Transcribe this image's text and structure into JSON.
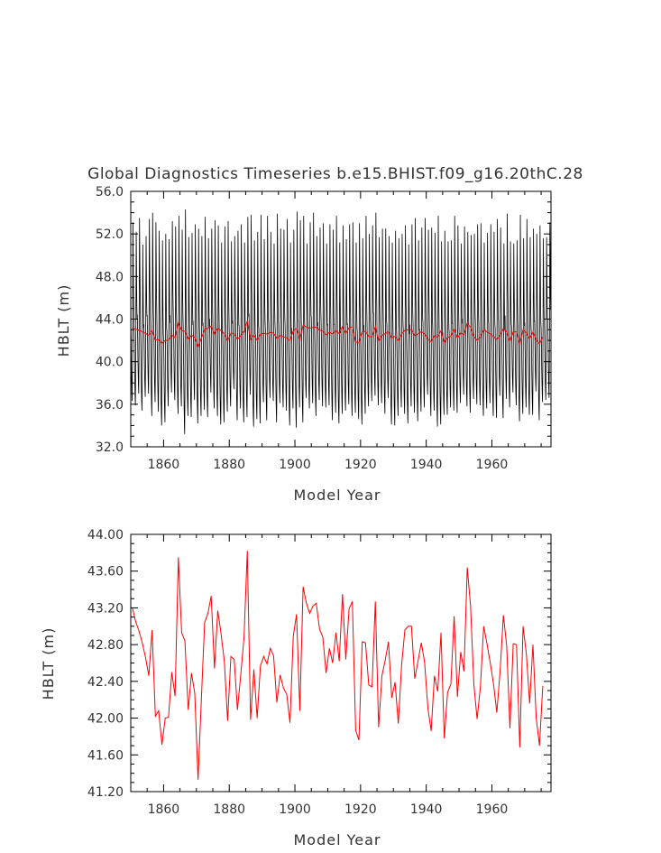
{
  "chart_data": [
    {
      "type": "line",
      "title": "Global Diagnostics Timeseries b.e15.BHIST.f09_g16.20thC.28",
      "xlabel": "Model Year",
      "ylabel": "HBLT (m)",
      "xlim": [
        1850,
        1978
      ],
      "ylim": [
        32.0,
        56.0
      ],
      "x_ticks": [
        1860,
        1880,
        1900,
        1920,
        1940,
        1960
      ],
      "y_ticks": [
        32.0,
        36.0,
        40.0,
        44.0,
        48.0,
        52.0,
        56.0
      ],
      "y_tick_labels": [
        "32.0",
        "36.0",
        "40.0",
        "44.0",
        "48.0",
        "52.0",
        "56.0"
      ],
      "series": [
        {
          "color": "#000000",
          "description": "monthly values, strong seasonal cycle",
          "annual_max": [
            53.1,
            52.2,
            53.5,
            51.0,
            51.8,
            53.4,
            54.0,
            53.1,
            52.3,
            51.4,
            52.0,
            51.5,
            53.2,
            52.7,
            53.7,
            52.4,
            54.3,
            51.7,
            52.1,
            52.9,
            52.5,
            51.8,
            53.6,
            51.6,
            52.5,
            53.3,
            52.8,
            51.2,
            52.7,
            53.2,
            51.3,
            51.8,
            52.3,
            52.9,
            51.2,
            53.6,
            53.8,
            51.4,
            52.2,
            53.8,
            51.5,
            53.7,
            52.2,
            51.1,
            53.9,
            52.5,
            52.4,
            53.4,
            51.2,
            52.4,
            54.1,
            53.3,
            53.7,
            51.1,
            53.1,
            54.0,
            51.8,
            52.6,
            53.0,
            51.1,
            52.9,
            52.4,
            53.7,
            51.2,
            52.8,
            51.5,
            52.9,
            53.1,
            51.2,
            53.0,
            51.6,
            53.7,
            52.0,
            52.8,
            54.0,
            51.7,
            52.5,
            52.5,
            51.8,
            51.2,
            52.3,
            51.6,
            52.0,
            52.8,
            51.0,
            52.9,
            53.5,
            51.4,
            52.6,
            53.5,
            52.4,
            52.6,
            52.1,
            53.7,
            51.3,
            52.3,
            51.3,
            51.4,
            53.7,
            52.8,
            51.1,
            52.7,
            52.2,
            51.9,
            52.0,
            52.9,
            53.0,
            51.2,
            52.1,
            52.9,
            52.2,
            53.4,
            52.6,
            51.1,
            53.9,
            51.3,
            51.1,
            51.4,
            53.8,
            51.6,
            53.4,
            51.7,
            52.5,
            52.0,
            52.8,
            51.6,
            51.7,
            53.1
          ],
          "annual_min": [
            36.3,
            35.9,
            37.0,
            35.4,
            36.7,
            37.0,
            34.9,
            36.2,
            35.3,
            34.0,
            34.3,
            35.8,
            37.1,
            36.4,
            35.1,
            35.8,
            33.2,
            34.9,
            34.8,
            36.4,
            34.2,
            34.9,
            35.5,
            34.8,
            37.1,
            35.6,
            34.9,
            34.1,
            34.3,
            35.3,
            35.8,
            37.4,
            34.5,
            35.6,
            34.3,
            34.8,
            36.9,
            33.9,
            34.6,
            34.2,
            36.2,
            34.5,
            36.6,
            36.3,
            34.3,
            36.1,
            35.7,
            35.4,
            34.0,
            35.6,
            33.8,
            35.7,
            34.3,
            36.6,
            35.6,
            36.1,
            34.9,
            36.4,
            35.8,
            35.7,
            35.9,
            34.5,
            35.2,
            34.2,
            35.1,
            35.4,
            36.0,
            34.9,
            35.2,
            34.6,
            34.1,
            35.1,
            35.8,
            36.3,
            36.8,
            35.9,
            36.1,
            35.1,
            36.6,
            34.1,
            34.0,
            34.9,
            35.7,
            35.1,
            34.2,
            35.8,
            35.2,
            34.4,
            35.3,
            35.7,
            36.9,
            34.9,
            35.4,
            33.9,
            34.1,
            35.0,
            35.0,
            35.7,
            35.4,
            35.2,
            36.1,
            36.9,
            35.8,
            35.2,
            36.5,
            36.0,
            35.9,
            34.9,
            35.6,
            36.1,
            34.9,
            34.7,
            36.8,
            34.7,
            36.5,
            35.7,
            37.1,
            35.9,
            34.4,
            35.1,
            35.7,
            35.0,
            35.0,
            37.2,
            34.5,
            36.2,
            36.4,
            36.6
          ]
        },
        {
          "color": "#ff0000",
          "description": "annual mean",
          "values": [
            43.2,
            43.05,
            42.95,
            42.82,
            42.66,
            42.46,
            42.96,
            42.02,
            42.08,
            41.71,
            42.0,
            42.01,
            42.5,
            42.24,
            43.75,
            42.93,
            42.84,
            42.09,
            42.49,
            42.27,
            41.33,
            42.2,
            43.04,
            43.14,
            43.33,
            42.54,
            43.17,
            42.92,
            42.62,
            41.97,
            42.67,
            42.64,
            42.09,
            42.47,
            42.88,
            43.82,
            41.98,
            42.53,
            42.0,
            42.57,
            42.67,
            42.59,
            42.76,
            42.68,
            42.17,
            42.47,
            42.33,
            42.26,
            41.95,
            42.89,
            43.13,
            42.08,
            43.43,
            43.25,
            43.14,
            43.22,
            43.25,
            42.97,
            42.88,
            42.49,
            42.76,
            42.6,
            42.93,
            42.62,
            43.35,
            42.64,
            43.19,
            43.27,
            41.87,
            41.76,
            42.83,
            42.82,
            42.36,
            42.34,
            43.27,
            41.9,
            42.46,
            42.63,
            42.83,
            42.22,
            42.39,
            41.94,
            42.58,
            42.96,
            43.0,
            43.0,
            42.43,
            42.62,
            42.82,
            42.61,
            42.11,
            41.86,
            42.46,
            42.29,
            42.93,
            41.78,
            42.28,
            42.37,
            43.11,
            42.23,
            42.72,
            42.51,
            43.64,
            43.22,
            42.37,
            41.99,
            42.34,
            43.0,
            42.81,
            42.6,
            42.37,
            42.06,
            42.51,
            43.12,
            42.79,
            41.89,
            42.81,
            42.8,
            41.68,
            43.0,
            42.7,
            42.16,
            42.8,
            42.0,
            41.7,
            42.35
          ]
        }
      ]
    },
    {
      "type": "line",
      "title": "",
      "xlabel": "Model Year",
      "ylabel": "HBLT (m)",
      "xlim": [
        1850,
        1978
      ],
      "ylim": [
        41.2,
        44.0
      ],
      "x_ticks": [
        1860,
        1880,
        1900,
        1920,
        1940,
        1960
      ],
      "y_ticks": [
        41.2,
        41.6,
        42.0,
        42.4,
        42.8,
        43.2,
        43.6,
        44.0
      ],
      "y_tick_labels": [
        "41.20",
        "41.60",
        "42.00",
        "42.40",
        "42.80",
        "43.20",
        "43.60",
        "44.00"
      ],
      "series": [
        {
          "color": "#ff0000",
          "description": "annual mean",
          "x_start": 1850,
          "values": [
            43.2,
            43.05,
            42.95,
            42.82,
            42.66,
            42.46,
            42.96,
            42.02,
            42.08,
            41.71,
            42.0,
            42.01,
            42.5,
            42.24,
            43.75,
            42.93,
            42.84,
            42.09,
            42.49,
            42.27,
            41.33,
            42.2,
            43.04,
            43.14,
            43.33,
            42.54,
            43.17,
            42.92,
            42.62,
            41.97,
            42.67,
            42.64,
            42.09,
            42.47,
            42.88,
            43.82,
            41.98,
            42.53,
            42.0,
            42.57,
            42.67,
            42.59,
            42.76,
            42.68,
            42.17,
            42.47,
            42.33,
            42.26,
            41.95,
            42.89,
            43.13,
            42.08,
            43.43,
            43.25,
            43.14,
            43.22,
            43.25,
            42.97,
            42.88,
            42.49,
            42.76,
            42.6,
            42.93,
            42.62,
            43.35,
            42.64,
            43.19,
            43.27,
            41.87,
            41.76,
            42.83,
            42.82,
            42.36,
            42.34,
            43.27,
            41.9,
            42.46,
            42.63,
            42.83,
            42.22,
            42.39,
            41.94,
            42.58,
            42.96,
            43.0,
            43.0,
            42.43,
            42.62,
            42.82,
            42.61,
            42.11,
            41.86,
            42.46,
            42.29,
            42.93,
            41.78,
            42.28,
            42.37,
            43.11,
            42.23,
            42.72,
            42.51,
            43.64,
            43.22,
            42.37,
            41.99,
            42.34,
            43.0,
            42.81,
            42.6,
            42.37,
            42.06,
            42.51,
            43.12,
            42.79,
            41.89,
            42.81,
            42.8,
            41.68,
            43.0,
            42.7,
            42.16,
            42.8,
            42.0,
            41.7,
            42.35
          ]
        }
      ]
    }
  ]
}
